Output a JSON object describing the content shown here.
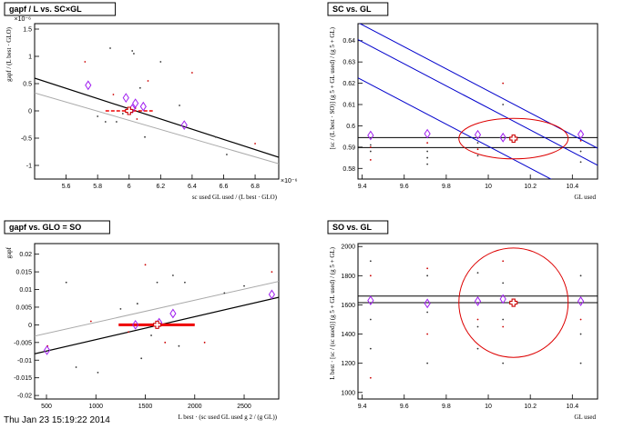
{
  "footer": {
    "timestamp": "Thu Jan 23 15:19:22 2014"
  },
  "chart_data": [
    {
      "type": "scatter",
      "title": "gapf / L vs. SC×GL",
      "xlabel": "sc used GL used / (L best · GLO)",
      "ylabel": "gapf / (L best · GLO)",
      "x_multiplier": "×10⁻⁶",
      "y_multiplier": "×10⁻⁶",
      "xlim": [
        5.4,
        6.95
      ],
      "ylim": [
        -1.25,
        1.6
      ],
      "x_ticks": [
        "5.6",
        "5.8",
        "6",
        "6.2",
        "6.4",
        "6.6",
        "6.8"
      ],
      "y_ticks": [
        "-1",
        "-0.5",
        "0",
        "0.5",
        "1",
        "1.5"
      ],
      "markers": {
        "x": [
          5.74,
          5.98,
          6.02,
          6.04,
          6.09,
          6.35
        ],
        "y": [
          0.47,
          0.24,
          0.04,
          0.14,
          0.08,
          -0.26
        ]
      },
      "best_fit": {
        "x": 6.0,
        "y": 0.0,
        "err_x": [
          5.85,
          6.15
        ]
      },
      "fit_line": {
        "x": [
          5.4,
          6.95
        ],
        "y": [
          0.6,
          -0.85
        ]
      },
      "ref_line": {
        "x": [
          5.4,
          6.95
        ],
        "y": [
          0.33,
          -0.97
        ]
      },
      "dots": {
        "x": [
          5.72,
          5.8,
          5.85,
          5.9,
          5.96,
          6.02,
          6.04,
          6.07,
          6.1,
          6.12,
          6.2,
          6.32,
          6.4,
          6.55,
          6.62,
          6.8,
          6.03,
          5.92,
          6.05,
          5.88
        ],
        "y": [
          0.9,
          -0.1,
          -0.2,
          0.3,
          -0.05,
          1.1,
          0.05,
          0.42,
          -0.48,
          0.55,
          0.9,
          0.1,
          0.7,
          -0.48,
          -0.8,
          -0.6,
          1.05,
          -0.2,
          -0.15,
          1.15
        ]
      }
    },
    {
      "type": "scatter",
      "title": "SC vs. GL",
      "xlabel": "GL used",
      "ylabel": "[sc / (L best · SO)] (g 5 + GL used) / (g 5 + GL)",
      "xlim": [
        9.38,
        10.52
      ],
      "ylim": [
        0.575,
        0.648
      ],
      "x_ticks": [
        "9.4",
        "9.6",
        "9.8",
        "10",
        "10.2",
        "10.4"
      ],
      "y_ticks": [
        "0.58",
        "0.59",
        "0.6",
        "0.61",
        "0.62",
        "0.63",
        "0.64"
      ],
      "markers": {
        "x": [
          9.44,
          9.71,
          9.95,
          10.07,
          10.44
        ],
        "y": [
          0.5955,
          0.5963,
          0.5958,
          0.5945,
          0.596
        ]
      },
      "best_fit": {
        "x": 10.12,
        "y": 0.594
      },
      "hlines": [
        0.5945,
        0.5898
      ],
      "blue_lines": [
        {
          "x": [
            9.38,
            10.52
          ],
          "y": [
            0.6485,
            0.5895
          ]
        },
        {
          "x": [
            9.38,
            10.52
          ],
          "y": [
            0.6405,
            0.5815
          ]
        },
        {
          "x": [
            9.38,
            10.52
          ],
          "y": [
            0.6225,
            0.5635
          ]
        }
      ],
      "ellipse": {
        "cx": 10.12,
        "cy": 0.594,
        "rx": 0.26,
        "ry": 0.0095
      },
      "dots": {
        "x": [
          9.44,
          9.44,
          9.44,
          9.44,
          9.71,
          9.71,
          9.71,
          9.71,
          9.95,
          9.95,
          9.95,
          10.07,
          10.07,
          10.44,
          10.44,
          10.44
        ],
        "y": [
          0.584,
          0.588,
          0.591,
          0.59,
          0.585,
          0.588,
          0.592,
          0.582,
          0.586,
          0.589,
          0.592,
          0.61,
          0.62,
          0.583,
          0.588,
          0.593
        ]
      }
    },
    {
      "type": "scatter",
      "title": "gapf vs. GLO = SO",
      "xlabel": "L best · (sc used GL used g 2 / (g GL))",
      "ylabel": "gapf",
      "xlim": [
        380,
        2850
      ],
      "ylim": [
        -0.021,
        0.023
      ],
      "x_ticks": [
        "500",
        "1000",
        "1500",
        "2000",
        "2500"
      ],
      "y_ticks": [
        "-0.02",
        "-0.015",
        "-0.01",
        "-0.005",
        "0",
        "0.005",
        "0.01",
        "0.015",
        "0.02"
      ],
      "markers": {
        "x": [
          505,
          1400,
          1640,
          1780,
          2780
        ],
        "y": [
          -0.0072,
          0.0,
          0.0006,
          0.0032,
          0.0086
        ]
      },
      "best_fit": {
        "x": 1620,
        "y": 0.0,
        "err_x": [
          1230,
          2000
        ]
      },
      "fit_line": {
        "x": [
          380,
          2850
        ],
        "y": [
          -0.0082,
          0.0078
        ]
      },
      "ref_line": {
        "x": [
          380,
          2850
        ],
        "y": [
          -0.0032,
          0.0123
        ]
      },
      "dots": {
        "x": [
          510,
          700,
          800,
          950,
          1020,
          1250,
          1330,
          1420,
          1460,
          1500,
          1560,
          1620,
          1700,
          1780,
          1840,
          2100,
          2300,
          2500,
          2780,
          1900
        ],
        "y": [
          -0.006,
          0.012,
          -0.012,
          0.001,
          -0.0135,
          0.0045,
          -0.002,
          0.006,
          -0.0095,
          0.017,
          -0.003,
          0.012,
          -0.005,
          0.014,
          -0.006,
          -0.005,
          0.009,
          0.011,
          0.015,
          0.012
        ]
      }
    },
    {
      "type": "scatter",
      "title": "SO vs. GL",
      "xlabel": "GL used",
      "ylabel": "L best · [sc / (sc used)] (g 5 + GL used) / (g 5 + GL)",
      "xlim": [
        9.38,
        10.52
      ],
      "ylim": [
        955,
        2020
      ],
      "x_ticks": [
        "9.4",
        "9.6",
        "9.8",
        "10",
        "10.2",
        "10.4"
      ],
      "y_ticks": [
        "1000",
        "1200",
        "1400",
        "1600",
        "1800",
        "2000"
      ],
      "markers": {
        "x": [
          9.44,
          9.71,
          9.95,
          10.07,
          10.44
        ],
        "y": [
          1630,
          1610,
          1625,
          1640,
          1625
        ]
      },
      "best_fit": {
        "x": 10.12,
        "y": 1615
      },
      "hlines": [
        1660,
        1615
      ],
      "ellipse": {
        "cx": 10.12,
        "cy": 1615,
        "rx": 0.26,
        "ry": 375
      },
      "dots": {
        "x": [
          9.44,
          9.44,
          9.44,
          9.44,
          9.44,
          9.71,
          9.71,
          9.71,
          9.71,
          9.71,
          9.95,
          9.95,
          9.95,
          9.95,
          10.07,
          10.07,
          10.07,
          10.07,
          10.07,
          10.44,
          10.44,
          10.44,
          10.44
        ],
        "y": [
          1100,
          1300,
          1500,
          1800,
          1900,
          1200,
          1400,
          1550,
          1800,
          1850,
          1300,
          1450,
          1500,
          1820,
          1200,
          1450,
          1500,
          1750,
          1900,
          1200,
          1400,
          1500,
          1800
        ]
      }
    }
  ]
}
